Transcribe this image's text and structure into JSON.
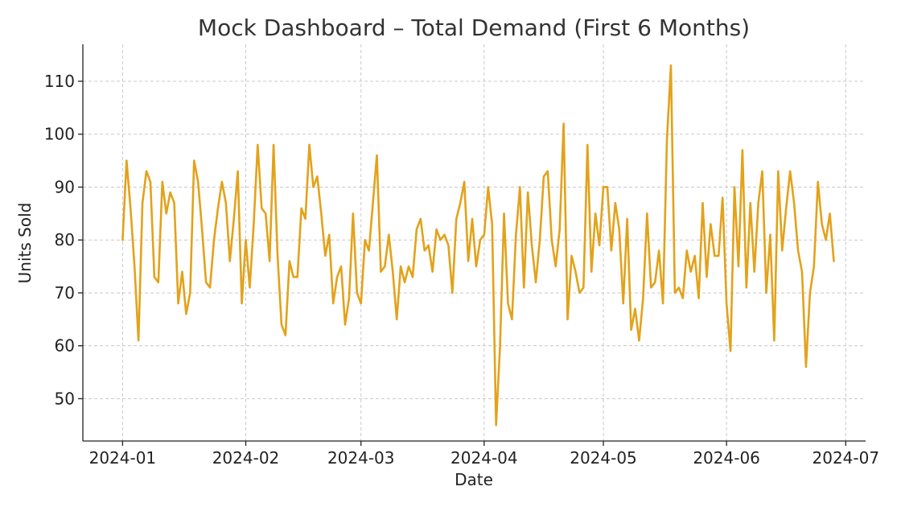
{
  "chart_data": {
    "type": "line",
    "title": "Mock Dashboard – Total Demand (First 6 Months)",
    "xlabel": "Date",
    "ylabel": "Units Sold",
    "x_start": "2024-01-01",
    "x_ticks": [
      "2024-01",
      "2024-02",
      "2024-03",
      "2024-04",
      "2024-05",
      "2024-06",
      "2024-07"
    ],
    "y_ticks": [
      50,
      60,
      70,
      80,
      90,
      100,
      110
    ],
    "xlim": [
      "2023-12-22",
      "2024-07-06"
    ],
    "ylim": [
      42,
      117
    ],
    "grid": true,
    "series": [
      {
        "color": "#E3A21A",
        "values": [
          80,
          95,
          86,
          75,
          61,
          87,
          93,
          91,
          73,
          72,
          91,
          85,
          89,
          87,
          68,
          74,
          66,
          70,
          95,
          91,
          82,
          72,
          71,
          80,
          86,
          91,
          87,
          76,
          84,
          93,
          68,
          80,
          71,
          83,
          98,
          86,
          85,
          76,
          98,
          77,
          64,
          62,
          76,
          73,
          73,
          86,
          84,
          98,
          90,
          92,
          85,
          77,
          81,
          68,
          73,
          75,
          64,
          69,
          85,
          70,
          68,
          80,
          78,
          87,
          96,
          74,
          75,
          81,
          74,
          65,
          75,
          72,
          75,
          73,
          82,
          84,
          78,
          79,
          74,
          82,
          80,
          81,
          79,
          70,
          84,
          87,
          91,
          76,
          84,
          75,
          80,
          81,
          90,
          83,
          45,
          60,
          85,
          68,
          65,
          81,
          90,
          71,
          89,
          79,
          72,
          80,
          92,
          93,
          80,
          75,
          82,
          102,
          65,
          77,
          74,
          70,
          71,
          98,
          74,
          85,
          79,
          90,
          90,
          78,
          87,
          82,
          68,
          84,
          63,
          67,
          61,
          69,
          85,
          71,
          72,
          78,
          68,
          99,
          113,
          70,
          71,
          69,
          78,
          74,
          77,
          69,
          87,
          73,
          83,
          77,
          77,
          88,
          68,
          59,
          90,
          75,
          97,
          71,
          87,
          74,
          87,
          93,
          70,
          81,
          61,
          93,
          78,
          86,
          93,
          87,
          78,
          74,
          56,
          70,
          75,
          91,
          83,
          80,
          85,
          76
        ]
      }
    ]
  }
}
